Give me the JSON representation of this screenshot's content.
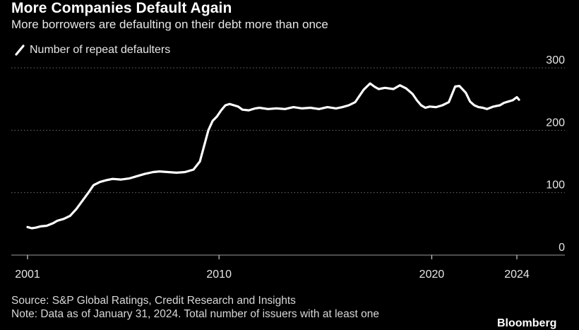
{
  "header": {
    "title": "More Companies Default Again",
    "subtitle": "More borrowers are defaulting on their debt more than once"
  },
  "footer": {
    "source": "Source: S&P Global Ratings, Credit Research and Insights",
    "note": "Note: Data as of January 31, 2024. Total number of issuers with at least one",
    "brand": "Bloomberg"
  },
  "colors": {
    "background": "#000000",
    "line": "#ffffff",
    "grid": "#6e6e6e",
    "text": "#e6e6e6"
  },
  "chart_data": {
    "type": "line",
    "title": "More Companies Default Again",
    "subtitle": "More borrowers are defaulting on their debt more than once",
    "xlabel": "",
    "ylabel": "",
    "xlim": [
      2001,
      2025.7
    ],
    "ylim": [
      0,
      300
    ],
    "x_ticks": [
      2001,
      2010,
      2020,
      2024
    ],
    "x_tick_labels": [
      "2001",
      "2010",
      "2020",
      "2024"
    ],
    "y_ticks": [
      0,
      100,
      200,
      300
    ],
    "y_tick_labels": [
      "0",
      "100",
      "200",
      "300"
    ],
    "y_axis_side": "right",
    "grid": "horizontal dotted",
    "legend_position": "top-left",
    "series": [
      {
        "name": "Number of repeat defaulters",
        "color": "#ffffff",
        "x": [
          2001.0,
          2001.2,
          2001.4,
          2001.6,
          2001.9,
          2002.2,
          2002.4,
          2002.7,
          2003.0,
          2003.3,
          2003.6,
          2003.9,
          2004.1,
          2004.4,
          2004.7,
          2005.0,
          2005.4,
          2005.8,
          2006.1,
          2006.5,
          2006.9,
          2007.2,
          2007.6,
          2008.0,
          2008.4,
          2008.8,
          2009.1,
          2009.3,
          2009.5,
          2009.7,
          2009.9,
          2010.1,
          2010.3,
          2010.5,
          2010.7,
          2010.9,
          2011.1,
          2011.4,
          2011.7,
          2011.9,
          2012.3,
          2012.7,
          2013.1,
          2013.5,
          2013.9,
          2014.3,
          2014.7,
          2015.1,
          2015.5,
          2015.8,
          2016.1,
          2016.4,
          2016.8,
          2017.1,
          2017.3,
          2017.5,
          2017.8,
          2018.2,
          2018.5,
          2018.8,
          2019.1,
          2019.3,
          2019.5,
          2019.7,
          2019.9,
          2020.2,
          2020.5,
          2020.8,
          2021.1,
          2021.3,
          2021.6,
          2021.8,
          2022.0,
          2022.2,
          2022.4,
          2022.6,
          2022.9,
          2023.2,
          2023.4,
          2023.6,
          2023.8,
          2024.0,
          2024.1
        ],
        "values": [
          45,
          43,
          44,
          46,
          47,
          51,
          55,
          58,
          63,
          74,
          88,
          102,
          112,
          117,
          120,
          122,
          121,
          123,
          126,
          130,
          133,
          134,
          133,
          132,
          133,
          137,
          150,
          175,
          200,
          215,
          222,
          232,
          240,
          242,
          240,
          238,
          233,
          232,
          235,
          236,
          234,
          235,
          234,
          237,
          235,
          236,
          234,
          237,
          235,
          237,
          240,
          245,
          265,
          275,
          270,
          266,
          268,
          266,
          272,
          267,
          258,
          248,
          240,
          236,
          238,
          237,
          240,
          245,
          270,
          271,
          260,
          246,
          240,
          237,
          236,
          234,
          238,
          240,
          244,
          246,
          248,
          253,
          249
        ]
      }
    ]
  }
}
